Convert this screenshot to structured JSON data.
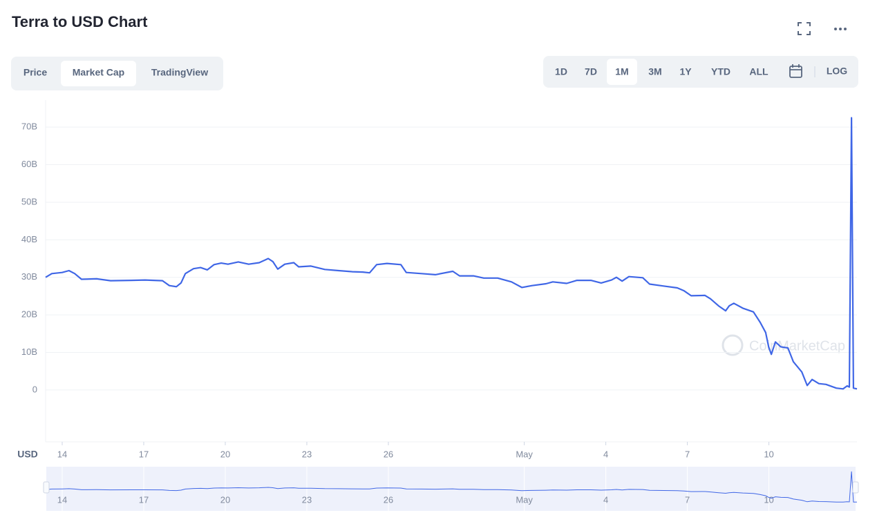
{
  "ui": {
    "tabs": [
      "Price",
      "Market Cap",
      "TradingView"
    ],
    "active_tab": 1,
    "ranges": [
      "1D",
      "7D",
      "1M",
      "3M",
      "1Y",
      "YTD",
      "ALL"
    ],
    "active_range": 2,
    "log_button": "LOG",
    "currency": "USD",
    "watermark": "CoinMarketCap"
  },
  "chart_data": {
    "type": "line",
    "title": "Terra to USD Chart",
    "color": "#3f66e6",
    "grid": true,
    "x": [
      13.39,
      13.62,
      14.0,
      14.25,
      14.46,
      14.71,
      15.27,
      15.78,
      16.54,
      17.05,
      17.69,
      17.94,
      18.2,
      18.37,
      18.53,
      18.83,
      19.09,
      19.34,
      19.59,
      19.85,
      20.1,
      20.48,
      20.86,
      21.25,
      21.58,
      21.75,
      21.93,
      22.19,
      22.52,
      22.7,
      23.15,
      23.66,
      24.17,
      24.68,
      25.06,
      25.31,
      25.57,
      25.95,
      26.46,
      26.66,
      27.22,
      27.73,
      28.37,
      28.62,
      29.13,
      29.51,
      30.02,
      30.53,
      30.91,
      31.29,
      31.8,
      32.05,
      32.56,
      32.94,
      33.45,
      33.83,
      34.21,
      34.39,
      34.6,
      34.85,
      35.36,
      35.61,
      36.12,
      36.63,
      36.88,
      37.14,
      37.65,
      37.85,
      38.15,
      38.41,
      38.54,
      38.71,
      39.04,
      39.43,
      39.68,
      39.88,
      39.99,
      40.09,
      40.24,
      40.44,
      40.7,
      40.9,
      41.21,
      41.41,
      41.59,
      41.84,
      42.1,
      42.48,
      42.73,
      42.88,
      42.96,
      43.04,
      43.11,
      43.24
    ],
    "values": [
      30,
      31,
      31.3,
      31.8,
      31,
      29.5,
      29.6,
      29.1,
      29.2,
      29.3,
      29.1,
      27.8,
      27.5,
      28.5,
      31,
      32.3,
      32.6,
      32,
      33.4,
      33.8,
      33.5,
      34.1,
      33.5,
      33.9,
      35,
      34.2,
      32.2,
      33.5,
      33.9,
      32.8,
      33,
      32.1,
      31.8,
      31.5,
      31.4,
      31.2,
      33.4,
      33.7,
      33.4,
      31.3,
      31,
      30.7,
      31.6,
      30.4,
      30.4,
      29.8,
      29.8,
      28.8,
      27.3,
      27.8,
      28.3,
      28.8,
      28.4,
      29.2,
      29.2,
      28.5,
      29.3,
      30,
      29,
      30.2,
      29.9,
      28.2,
      27.7,
      27.2,
      26.4,
      25.1,
      25.2,
      24.3,
      22.4,
      21.1,
      22.4,
      23.1,
      21.8,
      20.8,
      18,
      15.3,
      11.5,
      9.5,
      12.8,
      11.5,
      11.2,
      7.5,
      4.8,
      1.2,
      2.8,
      1.7,
      1.5,
      0.5,
      0.3,
      1.1,
      0.8,
      72.5,
      0.5,
      0.3
    ],
    "xlim": [
      13.39,
      43.24
    ],
    "xticks": [
      14,
      17,
      20,
      23,
      26,
      {
        "value": 31,
        "label": "May"
      },
      {
        "value": 34,
        "label": "4"
      },
      {
        "value": 37,
        "label": "7"
      },
      {
        "value": 40,
        "label": "10"
      }
    ],
    "ylim": [
      -13.8,
      77.2
    ],
    "yticks": [
      0,
      {
        "value": 10,
        "label": "10B"
      },
      {
        "value": 20,
        "label": "20B"
      },
      {
        "value": 30,
        "label": "30B"
      },
      {
        "value": 40,
        "label": "40B"
      },
      {
        "value": 50,
        "label": "50B"
      },
      {
        "value": 60,
        "label": "60B"
      },
      {
        "value": 70,
        "label": "70B"
      }
    ]
  }
}
